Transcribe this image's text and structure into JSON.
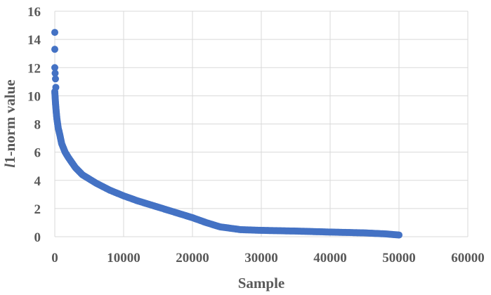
{
  "chart_data": {
    "type": "scatter",
    "title": "",
    "xlabel": "Sample",
    "ylabel_italic": "l",
    "ylabel_rest": "1-norm value",
    "xlim": [
      0,
      60000
    ],
    "ylim": [
      0,
      16
    ],
    "x_ticks": [
      0,
      10000,
      20000,
      30000,
      40000,
      50000,
      60000
    ],
    "y_ticks": [
      0,
      2,
      4,
      6,
      8,
      10,
      12,
      14,
      16
    ],
    "grid": true,
    "legend": "none",
    "marker_color": "#4472C4",
    "grid_color": "#d9d9d9",
    "series": [
      {
        "outliers": [
          [
            0,
            14.5
          ],
          [
            0,
            13.3
          ],
          [
            0,
            12.0
          ],
          [
            50,
            11.6
          ],
          [
            100,
            11.2
          ],
          [
            150,
            10.6
          ]
        ],
        "curve": [
          [
            0,
            10.3
          ],
          [
            100,
            9.5
          ],
          [
            200,
            8.9
          ],
          [
            300,
            8.4
          ],
          [
            500,
            7.7
          ],
          [
            700,
            7.3
          ],
          [
            1000,
            6.6
          ],
          [
            1500,
            6.0
          ],
          [
            2000,
            5.6
          ],
          [
            3000,
            4.9
          ],
          [
            4000,
            4.4
          ],
          [
            6000,
            3.8
          ],
          [
            8000,
            3.3
          ],
          [
            10000,
            2.9
          ],
          [
            12000,
            2.55
          ],
          [
            15000,
            2.1
          ],
          [
            18000,
            1.65
          ],
          [
            20000,
            1.35
          ],
          [
            22000,
            1.0
          ],
          [
            24000,
            0.7
          ],
          [
            27000,
            0.5
          ],
          [
            30000,
            0.45
          ],
          [
            35000,
            0.4
          ],
          [
            40000,
            0.33
          ],
          [
            45000,
            0.27
          ],
          [
            48000,
            0.2
          ],
          [
            50000,
            0.12
          ]
        ]
      }
    ]
  }
}
